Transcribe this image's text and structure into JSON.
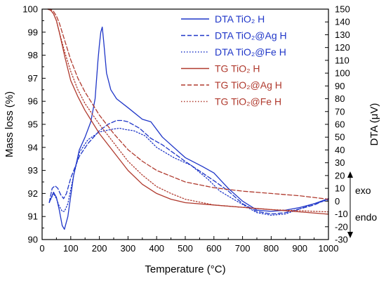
{
  "chart_data": {
    "type": "line",
    "xlabel": "Temperature (°C)",
    "ylabel_left": "Mass loss (%)",
    "ylabel_right": "DTA (μV)",
    "xlim": [
      0,
      1000
    ],
    "ylim_left": [
      90,
      100
    ],
    "ylim_right": [
      -30,
      150
    ],
    "x_ticks": [
      0,
      100,
      200,
      300,
      400,
      500,
      600,
      700,
      800,
      900,
      1000
    ],
    "y_left_ticks": [
      90,
      91,
      92,
      93,
      94,
      95,
      96,
      97,
      98,
      99,
      100
    ],
    "y_right_ticks": [
      -30,
      -20,
      -10,
      0,
      10,
      20,
      30,
      40,
      50,
      60,
      70,
      80,
      90,
      100,
      110,
      120,
      130,
      140,
      150
    ],
    "grid": false,
    "legend_position": "top-right",
    "annotations": {
      "exo": "exo",
      "endo": "endo"
    },
    "colors": {
      "dta": "#1f36c8",
      "tg": "#b03a2e"
    },
    "series": [
      {
        "name": "DTA TiO₂ H",
        "axis": "right",
        "style": "solid",
        "color": "#1f36c8",
        "x": [
          25,
          40,
          50,
          60,
          70,
          78,
          90,
          110,
          130,
          150,
          170,
          185,
          195,
          200,
          205,
          210,
          215,
          225,
          240,
          260,
          300,
          350,
          380,
          420,
          500,
          560,
          600,
          650,
          700,
          750,
          800,
          850,
          900,
          950,
          1000
        ],
        "y": [
          -1,
          7,
          3,
          -7,
          -19,
          -22,
          -12,
          20,
          40,
          50,
          62,
          80,
          110,
          122,
          132,
          136,
          125,
          100,
          87,
          80,
          73,
          64,
          62,
          50,
          34,
          27,
          22,
          10,
          0,
          -7,
          -8,
          -7,
          -5,
          -2,
          2
        ]
      },
      {
        "name": "DTA TiO₂@Ag H",
        "axis": "right",
        "style": "dashed",
        "color": "#1f36c8",
        "x": [
          25,
          35,
          45,
          55,
          65,
          75,
          85,
          100,
          130,
          160,
          200,
          230,
          260,
          280,
          300,
          340,
          380,
          420,
          500,
          560,
          600,
          650,
          700,
          750,
          800,
          850,
          900,
          950,
          1000
        ],
        "y": [
          -1,
          10,
          12,
          10,
          5,
          2,
          6,
          18,
          35,
          45,
          55,
          60,
          63,
          63,
          62,
          57,
          49,
          44,
          31,
          22,
          16,
          8,
          -2,
          -8,
          -10,
          -9,
          -6,
          -3,
          2
        ]
      },
      {
        "name": "DTA TiO₂@Fe H",
        "axis": "right",
        "style": "dotted",
        "color": "#1f36c8",
        "x": [
          25,
          40,
          50,
          60,
          70,
          78,
          90,
          110,
          130,
          160,
          200,
          240,
          270,
          290,
          320,
          360,
          400,
          460,
          520,
          580,
          620,
          680,
          750,
          800,
          850,
          900,
          950,
          1000
        ],
        "y": [
          -1,
          6,
          2,
          -4,
          -8,
          -8,
          -2,
          20,
          38,
          48,
          54,
          56,
          57,
          56,
          55,
          51,
          42,
          34,
          28,
          17,
          8,
          0,
          -9,
          -11,
          -10,
          -6,
          -2,
          1
        ]
      },
      {
        "name": "TG TiO₂ H",
        "axis": "left",
        "style": "solid",
        "color": "#b03a2e",
        "x": [
          20,
          30,
          40,
          50,
          60,
          80,
          100,
          125,
          150,
          200,
          250,
          300,
          350,
          400,
          450,
          500,
          600,
          700,
          800,
          900,
          1000
        ],
        "y": [
          100,
          99.95,
          99.8,
          99.5,
          99.0,
          97.9,
          96.9,
          96.2,
          95.6,
          94.6,
          93.8,
          93.0,
          92.4,
          92.0,
          91.75,
          91.6,
          91.5,
          91.4,
          91.3,
          91.2,
          91.1
        ]
      },
      {
        "name": "TG TiO₂@Ag H",
        "axis": "left",
        "style": "dashed",
        "color": "#b03a2e",
        "x": [
          20,
          30,
          40,
          50,
          60,
          80,
          100,
          125,
          150,
          200,
          250,
          300,
          350,
          400,
          450,
          500,
          600,
          700,
          800,
          900,
          1000
        ],
        "y": [
          100,
          100,
          99.9,
          99.7,
          99.4,
          98.6,
          97.8,
          97.0,
          96.4,
          95.4,
          94.6,
          93.9,
          93.4,
          93.0,
          92.75,
          92.5,
          92.25,
          92.1,
          92.0,
          91.9,
          91.75
        ]
      },
      {
        "name": "TG TiO₂@Fe H",
        "axis": "left",
        "style": "dotted",
        "color": "#b03a2e",
        "x": [
          20,
          30,
          40,
          50,
          60,
          80,
          100,
          125,
          150,
          200,
          250,
          300,
          350,
          400,
          450,
          500,
          600,
          700,
          800,
          900,
          1000
        ],
        "y": [
          100,
          99.95,
          99.8,
          99.5,
          99.0,
          98.1,
          97.3,
          96.5,
          95.9,
          95.0,
          94.2,
          93.4,
          92.8,
          92.3,
          92.0,
          91.75,
          91.5,
          91.4,
          91.3,
          91.25,
          91.2
        ]
      }
    ]
  }
}
